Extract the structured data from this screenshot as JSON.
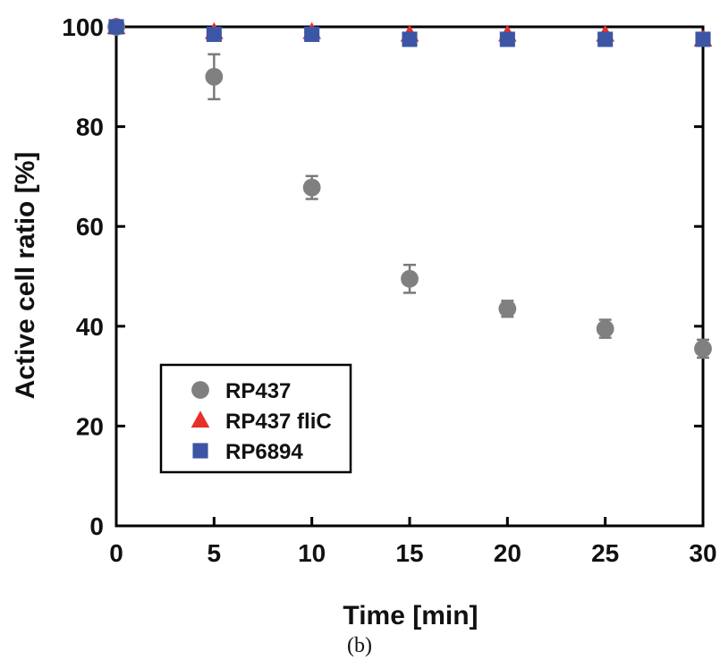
{
  "chart_data": {
    "type": "scatter",
    "xlabel": "Time [min]",
    "ylabel": "Active cell ratio [%]",
    "xlim": [
      0,
      30
    ],
    "ylim": [
      0,
      100
    ],
    "xticks": [
      0,
      5,
      10,
      15,
      20,
      25,
      30
    ],
    "yticks": [
      0,
      20,
      40,
      60,
      80,
      100
    ],
    "grid": false,
    "legend_position": "bottom-left",
    "caption": "(b)",
    "series": [
      {
        "name": "RP437",
        "marker": "circle",
        "color": "#808080",
        "x": [
          0,
          5,
          10,
          15,
          20,
          25,
          30
        ],
        "y": [
          100,
          90,
          67.8,
          49.5,
          43.5,
          39.5,
          35.5
        ],
        "error": [
          0,
          4.5,
          2.3,
          2.8,
          1.6,
          1.8,
          1.8
        ]
      },
      {
        "name": "RP437 fliC",
        "marker": "triangle",
        "color": "#e8302a",
        "x": [
          0,
          5,
          10,
          15,
          20,
          25,
          30
        ],
        "y": [
          100,
          99,
          99,
          98.5,
          98.5,
          98.5,
          97.5
        ],
        "error": [
          0,
          0,
          0,
          0,
          0,
          0,
          0
        ]
      },
      {
        "name": "RP6894",
        "marker": "square",
        "color": "#3c55a5",
        "x": [
          0,
          5,
          10,
          15,
          20,
          25,
          30
        ],
        "y": [
          100,
          98.5,
          98.5,
          97.5,
          97.5,
          97.5,
          97.5
        ],
        "error": [
          0,
          0,
          0,
          0,
          0,
          0,
          0
        ]
      }
    ]
  }
}
